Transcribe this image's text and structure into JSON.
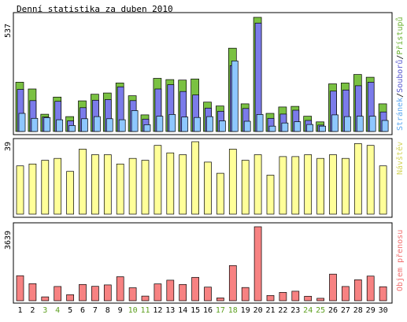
{
  "title": "Denní statistika za duben 2010",
  "colors": {
    "pristupy": "#7ac142",
    "soubory": "#7b7bea",
    "stranky": "#8ec7ff",
    "navstevy": "#ffff99",
    "objem": "#f78282",
    "weekend_day": "#5c9f1e",
    "weekday_day": "#000000",
    "frame": "#000000"
  },
  "chart_data": [
    {
      "type": "bar",
      "panel": "hits",
      "max_label": "537",
      "legend": [
        "Stránek",
        "Souborů",
        "Přístupů"
      ],
      "legend_separator": "/",
      "days": [
        1,
        2,
        3,
        4,
        5,
        6,
        7,
        8,
        9,
        10,
        11,
        12,
        13,
        14,
        15,
        16,
        17,
        18,
        19,
        20,
        21,
        22,
        23,
        24,
        25,
        26,
        27,
        28,
        29,
        30
      ],
      "weekend_days": [
        3,
        4,
        10,
        11,
        17,
        18,
        24,
        25
      ],
      "series": [
        {
          "name": "Přístupů",
          "values": [
            232,
            200,
            81,
            162,
            70,
            144,
            175,
            181,
            228,
            168,
            78,
            250,
            244,
            242,
            247,
            138,
            120,
            392,
            130,
            537,
            85,
            115,
            118,
            72,
            45,
            224,
            228,
            268,
            255,
            130
          ]
        },
        {
          "name": "Souborů",
          "values": [
            198,
            145,
            68,
            142,
            50,
            112,
            147,
            150,
            210,
            145,
            58,
            200,
            220,
            188,
            172,
            110,
            95,
            310,
            108,
            510,
            62,
            82,
            100,
            52,
            30,
            190,
            195,
            215,
            232,
            92
          ]
        },
        {
          "name": "Stránek",
          "values": [
            85,
            62,
            65,
            55,
            28,
            60,
            70,
            60,
            55,
            98,
            32,
            72,
            80,
            68,
            66,
            70,
            50,
            332,
            48,
            80,
            25,
            40,
            46,
            33,
            25,
            78,
            70,
            72,
            72,
            52
          ]
        }
      ]
    },
    {
      "type": "bar",
      "panel": "visits",
      "max_label": "39",
      "legend": [
        "Návštěv"
      ],
      "series": [
        {
          "name": "Návštěv",
          "values": [
            26,
            27,
            29,
            30,
            23,
            35,
            32,
            32,
            27,
            30,
            29,
            37,
            33,
            32,
            39,
            28,
            22,
            35,
            29,
            32,
            21,
            31,
            31,
            32,
            30,
            32,
            30,
            38,
            37,
            26
          ]
        }
      ]
    },
    {
      "type": "bar",
      "panel": "volume",
      "max_label": "3639",
      "legend": [
        "Objem přenosu"
      ],
      "series": [
        {
          "name": "Objem přenosu",
          "values": [
            1230,
            840,
            190,
            700,
            300,
            800,
            710,
            780,
            1180,
            640,
            230,
            830,
            1010,
            800,
            1150,
            670,
            140,
            1730,
            650,
            3639,
            260,
            410,
            470,
            220,
            120,
            1310,
            700,
            1030,
            1210,
            690
          ]
        }
      ]
    }
  ]
}
